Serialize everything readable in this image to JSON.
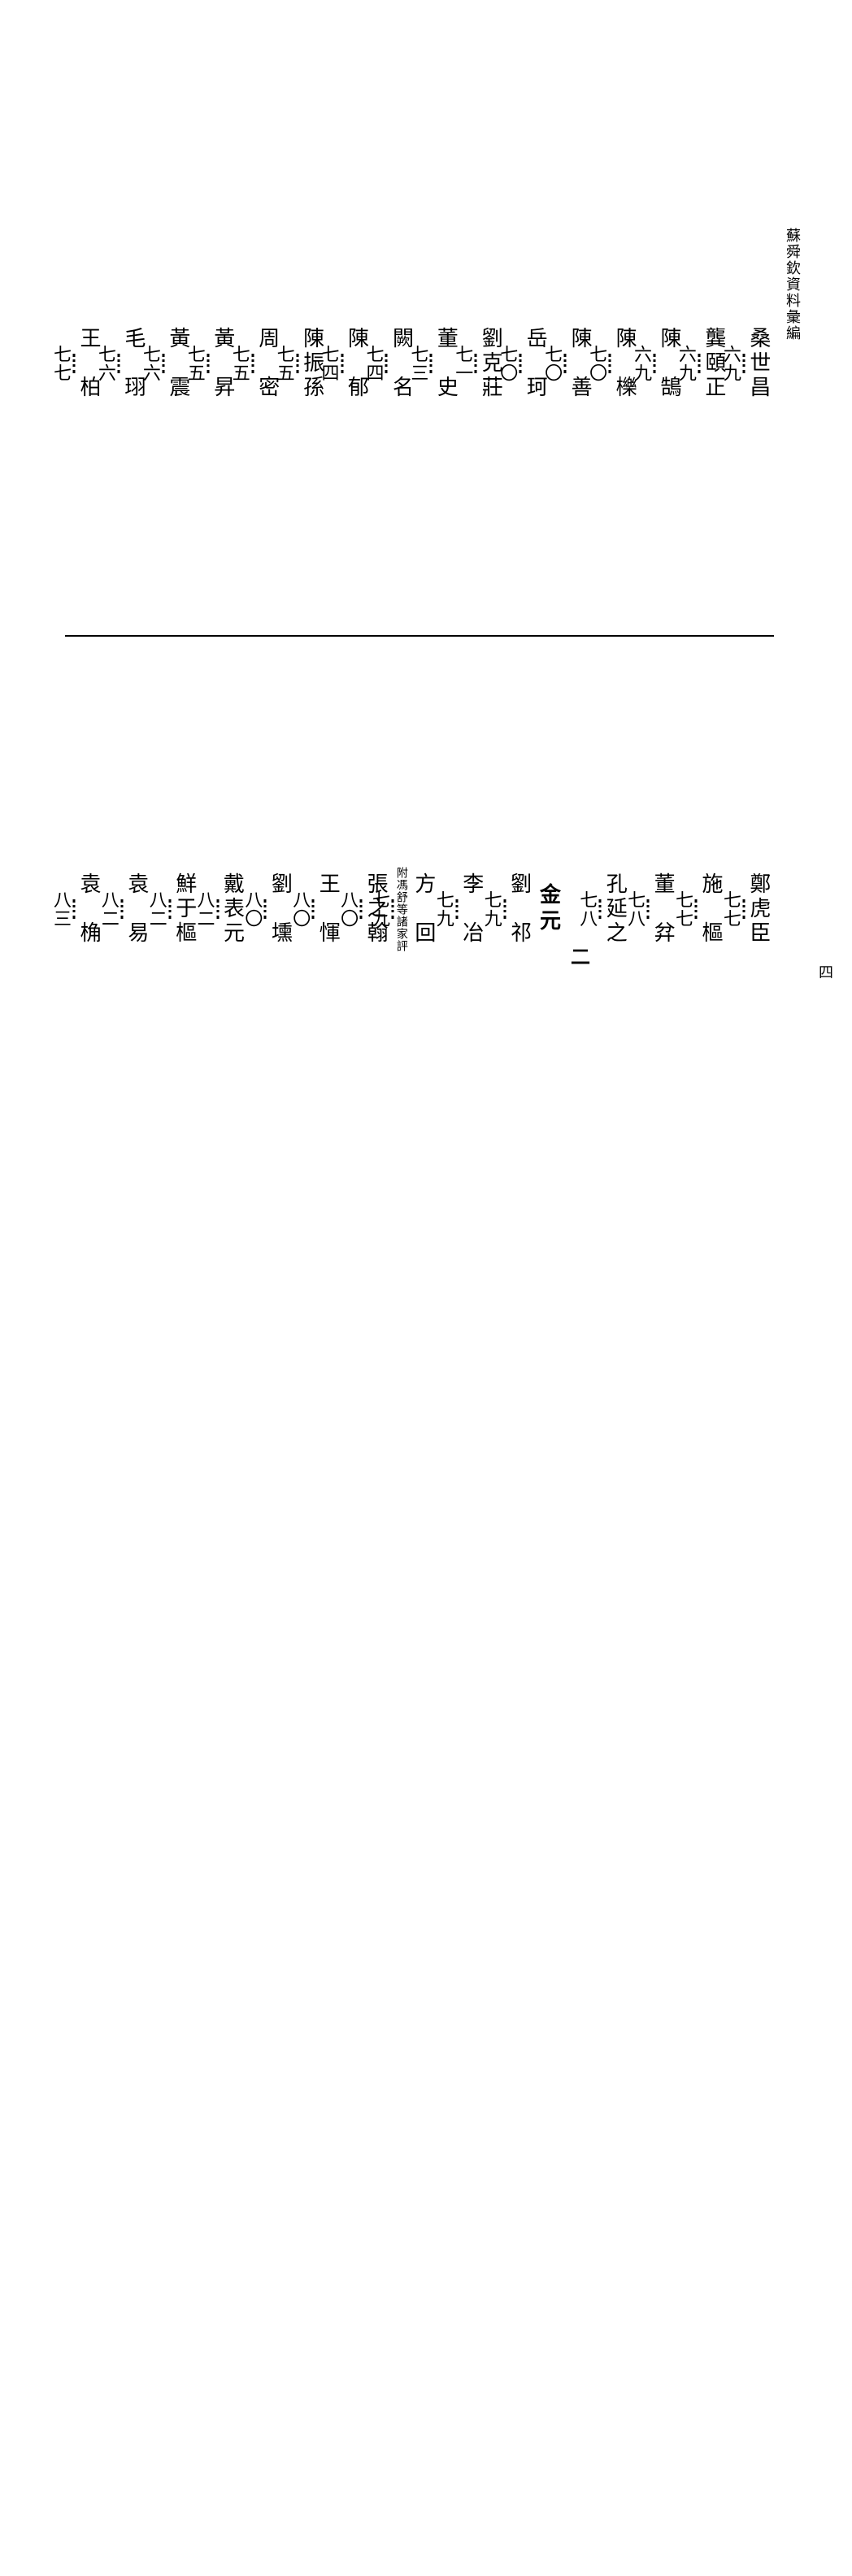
{
  "margin_title": "蘇舜欽資料彙編",
  "page_number": "四",
  "top_row": [
    {
      "name": "桑世昌",
      "page": "六九"
    },
    {
      "name": "龔頤正",
      "page": "六九"
    },
    {
      "name": "陳　鵠",
      "page": "六九"
    },
    {
      "name": "陳　櫟",
      "page": "七〇"
    },
    {
      "name": "陳　善",
      "page": "七〇"
    },
    {
      "name": "岳　珂",
      "page": "七〇"
    },
    {
      "name": "劉克莊",
      "page": "七一"
    },
    {
      "name": "董　史",
      "page": "七三"
    },
    {
      "name": "闕　名",
      "page": "七四"
    },
    {
      "name": "陳　郁",
      "page": "七四"
    },
    {
      "name": "陳振孫",
      "page": "七五"
    },
    {
      "name": "周　密",
      "page": "七五"
    },
    {
      "name": "黃　昇",
      "page": "七五"
    },
    {
      "name": "黃　震",
      "page": "七六"
    },
    {
      "name": "毛　珝",
      "page": "七六"
    },
    {
      "name": "王　柏",
      "page": "七七"
    }
  ],
  "bottom_row": [
    {
      "name": "鄭虎臣",
      "page": "七七"
    },
    {
      "name": "施　樞",
      "page": "七七"
    },
    {
      "name": "董　弅",
      "page": "七八"
    },
    {
      "name": "孔延之",
      "page": "七八"
    },
    {
      "type": "section",
      "label": "二",
      "text": "金元"
    },
    {
      "name": "劉　祁",
      "page": "七九"
    },
    {
      "name": "李　冶",
      "page": "七九"
    },
    {
      "name": "方　回",
      "note": "附馮舒等諸家評",
      "page": "七九"
    },
    {
      "name": "張之翰",
      "page": "八〇"
    },
    {
      "name": "王　惲",
      "page": "八〇"
    },
    {
      "name": "劉　壎",
      "page": "八〇"
    },
    {
      "name": "戴表元",
      "page": "八二"
    },
    {
      "name": "鮮于樞",
      "page": "八二"
    },
    {
      "name": "袁　易",
      "page": "八二"
    },
    {
      "name": "袁　桷",
      "page": "八三"
    }
  ]
}
